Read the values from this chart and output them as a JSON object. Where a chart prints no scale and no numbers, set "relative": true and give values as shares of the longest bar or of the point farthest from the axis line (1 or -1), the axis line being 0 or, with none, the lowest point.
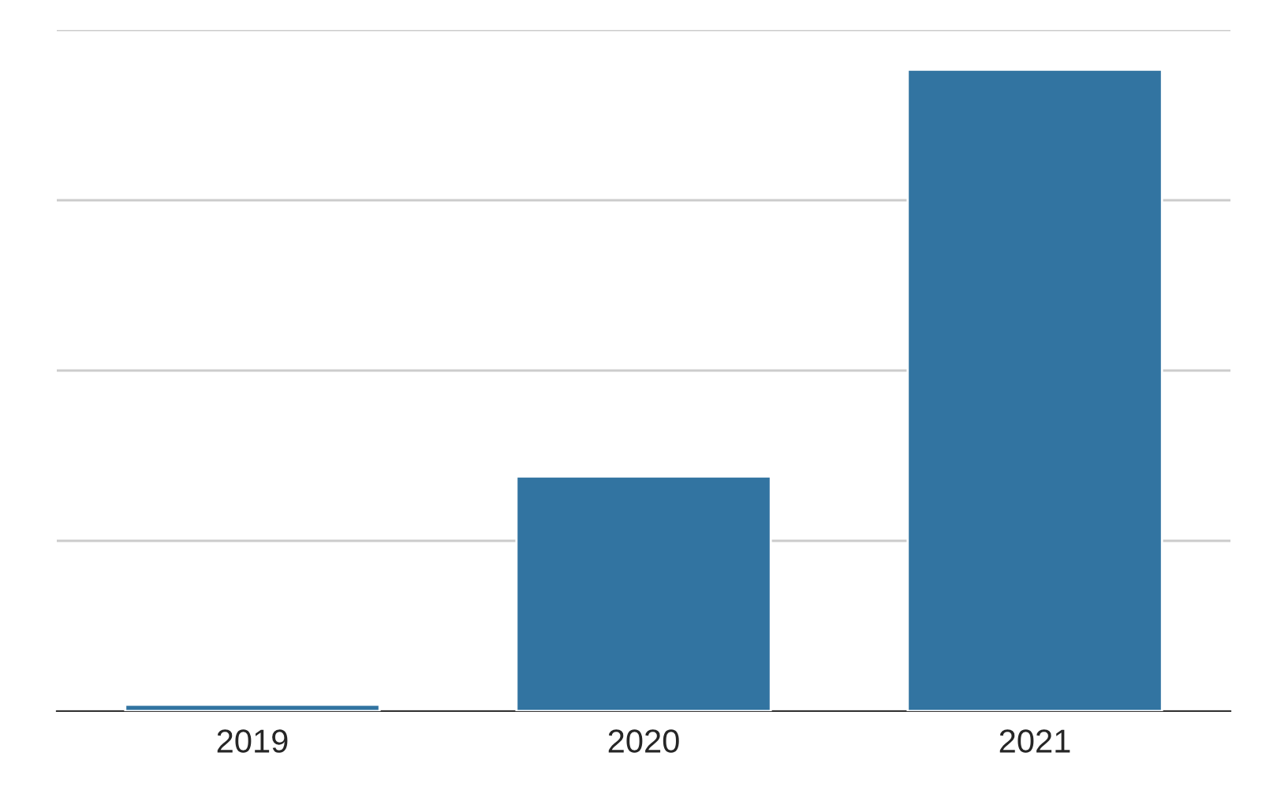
{
  "chart_data": {
    "type": "bar",
    "relative": true,
    "categories": [
      "2019",
      "2020",
      "2021"
    ],
    "values": [
      0.01,
      0.366,
      1
    ],
    "color": "#3274a1",
    "grid": "y",
    "tick_labels": "x",
    "legend": false
  }
}
